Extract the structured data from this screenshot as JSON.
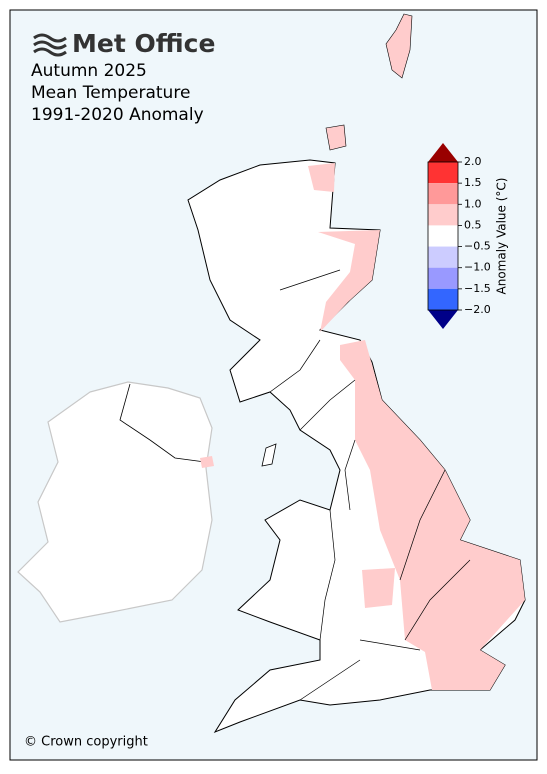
{
  "logo": "Met Office",
  "title": [
    "Autumn 2025",
    "Mean Temperature",
    "1991-2020 Anomaly"
  ],
  "colorbar": {
    "label": "Anomaly Value (°C)",
    "ticks": [
      {
        "value": 2,
        "label": "2.0"
      },
      {
        "value": 1.5,
        "label": "1.5"
      },
      {
        "value": 1,
        "label": "1.0"
      },
      {
        "value": 0.5,
        "label": "0.5"
      },
      {
        "value": -0.5,
        "label": "−0.5"
      },
      {
        "value": -1,
        "label": "−1.0"
      },
      {
        "value": -1.5,
        "label": "−1.5"
      },
      {
        "value": -2,
        "label": "−2.0"
      }
    ],
    "colors": [
      "#ff3333",
      "#ff9999",
      "#ffcccc",
      "#ffffff",
      "#ccccff",
      "#9999ff",
      "#3366ff"
    ],
    "over_color": "#990000",
    "under_color": "#000088"
  },
  "copyright": "© Crown copyright"
}
